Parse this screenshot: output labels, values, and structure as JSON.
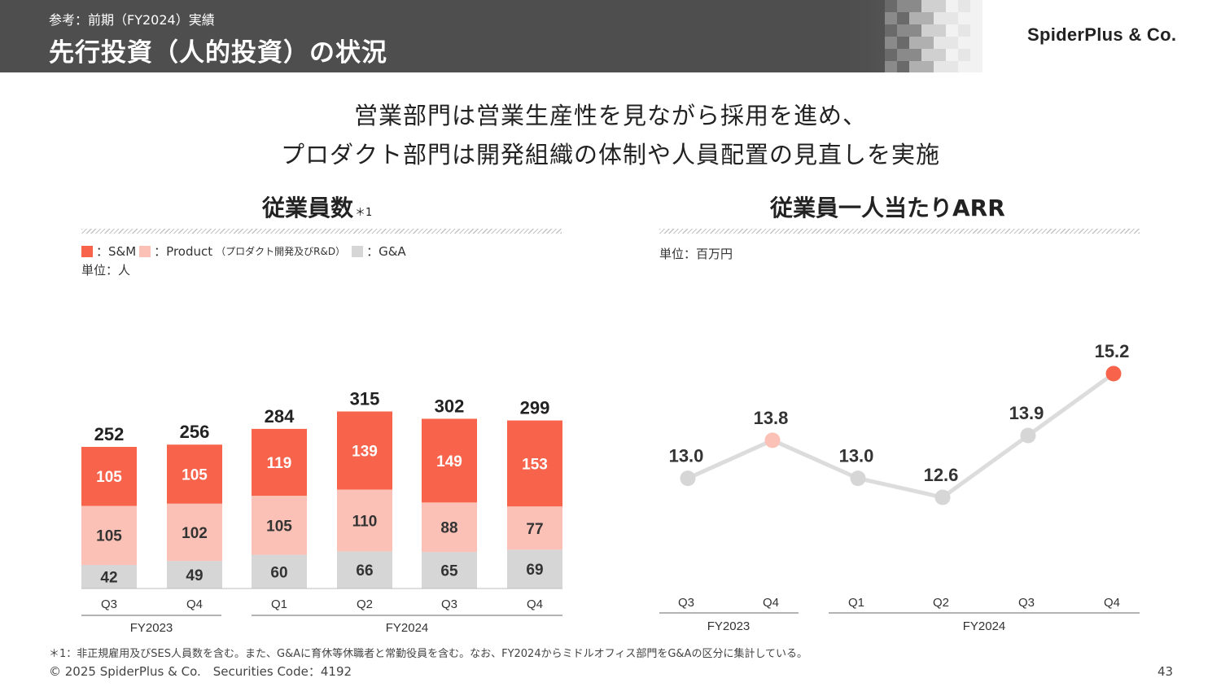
{
  "header": {
    "subtitle": "参考：前期（FY2024）実績",
    "title": "先行投資（人的投資）の状況",
    "logo": "SpiderPlus & Co."
  },
  "headline": {
    "line1": "営業部門は営業生産性を見ながら採用を進め、",
    "line2": "プロダクト部門は開発組織の体制や人員配置の見直しを実施"
  },
  "left_chart": {
    "title": "従業員数",
    "title_note": "＊1",
    "legend": [
      {
        "label": "：S&M",
        "note": "",
        "color": "#f7634b"
      },
      {
        "label": "：Product",
        "note": "（プロダクト開発及びR&D）",
        "color": "#fcc1b6"
      },
      {
        "label": "：G&A",
        "note": "",
        "color": "#d6d6d6"
      }
    ],
    "unit": "単位：人"
  },
  "right_chart": {
    "title": "従業員一人当たりARR",
    "unit": "単位：百万円"
  },
  "chart_data": [
    {
      "type": "bar",
      "stacked": true,
      "title": "従業員数",
      "categories": [
        "Q3",
        "Q4",
        "Q1",
        "Q2",
        "Q3",
        "Q4"
      ],
      "groups": [
        {
          "label": "FY2023",
          "start": 0,
          "end": 1
        },
        {
          "label": "FY2024",
          "start": 2,
          "end": 5
        }
      ],
      "series": [
        {
          "name": "G&A",
          "color": "#d6d6d6",
          "values": [
            42,
            49,
            60,
            66,
            65,
            69
          ]
        },
        {
          "name": "Product",
          "color": "#fcc1b6",
          "values": [
            105,
            102,
            105,
            110,
            88,
            77
          ]
        },
        {
          "name": "S&M",
          "color": "#f7634b",
          "values": [
            105,
            105,
            119,
            139,
            149,
            153
          ]
        }
      ],
      "totals": [
        252,
        256,
        284,
        315,
        302,
        299
      ],
      "ylim": [
        0,
        350
      ]
    },
    {
      "type": "line",
      "title": "従業員一人当たりARR",
      "categories": [
        "Q3",
        "Q4",
        "Q1",
        "Q2",
        "Q3",
        "Q4"
      ],
      "groups": [
        {
          "label": "FY2023",
          "start": 0,
          "end": 1
        },
        {
          "label": "FY2024",
          "start": 2,
          "end": 5
        }
      ],
      "values": [
        13.0,
        13.8,
        13.0,
        12.6,
        13.9,
        15.2
      ],
      "labels": [
        "13.0",
        "13.8",
        "13.0",
        "12.6",
        "13.9",
        "15.2"
      ],
      "point_colors": [
        "#d6d6d6",
        "#fcc1b6",
        "#d6d6d6",
        "#d6d6d6",
        "#d6d6d6",
        "#f7634b"
      ],
      "line_color": "#dcdcdc",
      "ylim": [
        10.8,
        15.9
      ]
    }
  ],
  "footer": {
    "footnote": "＊1：非正規雇用及びSES人員数を含む。また、G&Aに育休等休職者と常勤役員を含む。なお、FY2024からミドルオフィス部門をG&Aの区分に集計している。",
    "copyright": "© 2025 SpiderPlus & Co.　Securities Code：4192",
    "page": "43"
  }
}
